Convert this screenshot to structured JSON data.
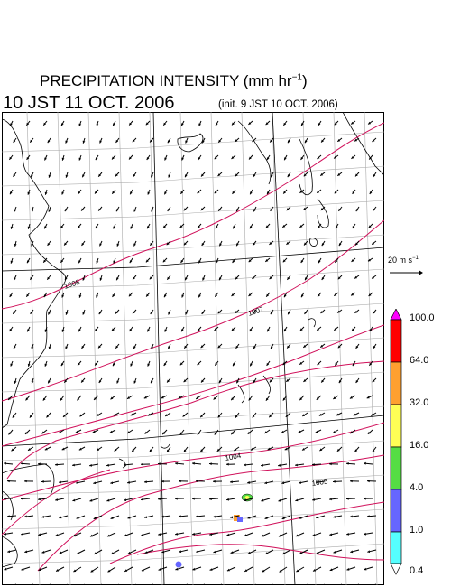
{
  "title": {
    "main": "PRECIPITATION INTENSITY (mm hr",
    "main_sup": "−1",
    "main_end": ")",
    "valid_time": "10 JST 11 OCT. 2006",
    "init": "(init. 9 JST 10 OCT. 2006)"
  },
  "map": {
    "isobars": [
      "1008",
      "1007",
      "1004",
      "1005"
    ],
    "wind_vector_reference": {
      "label": "20 m s",
      "sup": "−1"
    }
  },
  "legend": {
    "levels": [
      "100.0",
      "64.0",
      "32.0",
      "16.0",
      "4.0",
      "1.0",
      "0.4"
    ],
    "colors": [
      "#ff00ff",
      "#ff0000",
      "#ffa030",
      "#ffff55",
      "#55dd44",
      "#6666ff",
      "#55ffff"
    ]
  }
}
